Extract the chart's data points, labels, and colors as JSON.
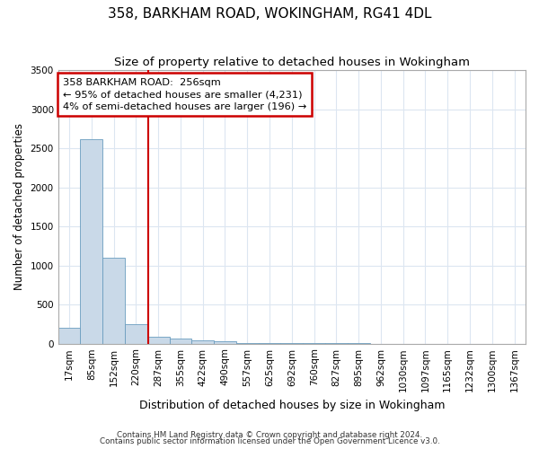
{
  "title1": "358, BARKHAM ROAD, WOKINGHAM, RG41 4DL",
  "title2": "Size of property relative to detached houses in Wokingham",
  "xlabel": "Distribution of detached houses by size in Wokingham",
  "ylabel": "Number of detached properties",
  "footnote1": "Contains HM Land Registry data © Crown copyright and database right 2024.",
  "footnote2": "Contains public sector information licensed under the Open Government Licence v3.0.",
  "bin_labels": [
    "17sqm",
    "85sqm",
    "152sqm",
    "220sqm",
    "287sqm",
    "355sqm",
    "422sqm",
    "490sqm",
    "557sqm",
    "625sqm",
    "692sqm",
    "760sqm",
    "827sqm",
    "895sqm",
    "962sqm",
    "1030sqm",
    "1097sqm",
    "1165sqm",
    "1232sqm",
    "1300sqm",
    "1367sqm"
  ],
  "bar_heights": [
    200,
    2620,
    1100,
    250,
    85,
    65,
    40,
    28,
    5,
    3,
    2,
    1,
    1,
    1,
    0,
    0,
    0,
    0,
    0,
    0,
    0
  ],
  "bar_color": "#c9d9e8",
  "bar_edge_color": "#6a9dbf",
  "ylim": [
    0,
    3500
  ],
  "yticks": [
    0,
    500,
    1000,
    1500,
    2000,
    2500,
    3000,
    3500
  ],
  "vline_x_index": 3.54,
  "vline_color": "#cc0000",
  "annotation_box_color": "#cc0000",
  "annotation_text_line1": "358 BARKHAM ROAD:  256sqm",
  "annotation_text_line2": "← 95% of detached houses are smaller (4,231)",
  "annotation_text_line3": "4% of semi-detached houses are larger (196) →",
  "grid_color": "#dce6f1",
  "background_color": "#ffffff",
  "title1_fontsize": 11,
  "title2_fontsize": 9.5,
  "annotation_fontsize": 8.2,
  "tick_fontsize": 7.5,
  "ylabel_fontsize": 8.5,
  "xlabel_fontsize": 9
}
